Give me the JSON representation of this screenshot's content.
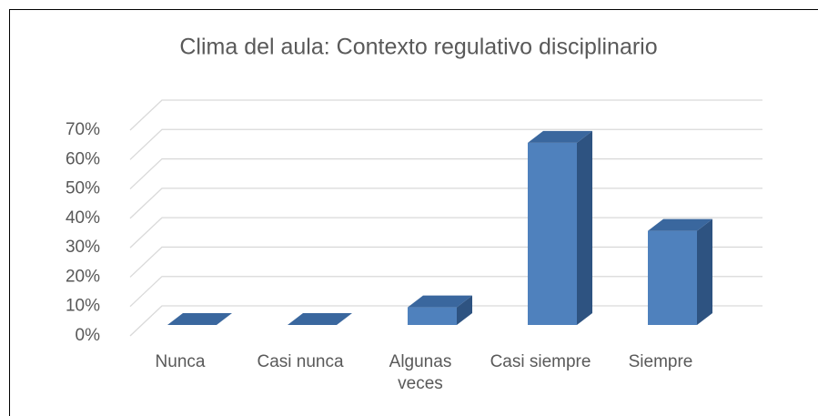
{
  "chart_data": {
    "type": "bar3d",
    "title": "Clima del  aula: Contexto regulativo disciplinario",
    "categories": [
      "Nunca",
      "Casi nunca",
      "Algunas veces",
      "Casi siempre",
      "Siempre"
    ],
    "values": [
      0,
      0,
      6,
      62,
      32
    ],
    "color": "#4f81bd",
    "ylim": [
      0,
      70
    ],
    "yticks": [
      {
        "value": 0,
        "label": "0%"
      },
      {
        "value": 10,
        "label": "10%"
      },
      {
        "value": 20,
        "label": "20%"
      },
      {
        "value": 30,
        "label": "30%"
      },
      {
        "value": 40,
        "label": "40%"
      },
      {
        "value": 50,
        "label": "50%"
      },
      {
        "value": 60,
        "label": "60%"
      },
      {
        "value": 70,
        "label": "70%"
      }
    ],
    "grid": true
  }
}
